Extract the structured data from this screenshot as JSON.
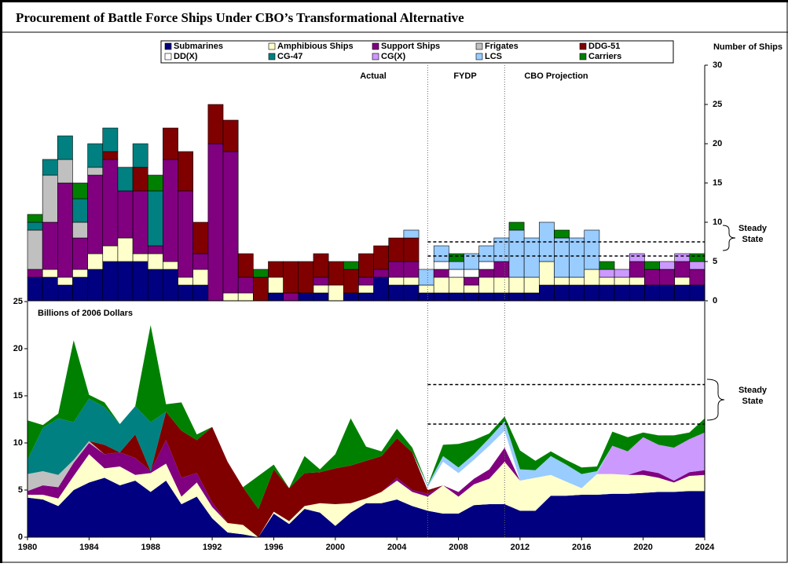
{
  "title": "Procurement of Battle Force Ships Under CBO’s Transformational Alternative",
  "chart_data": [
    {
      "type": "stacked-bar",
      "y_axis_label": "Number of Ships",
      "annotations": [
        "Actual",
        "FYDP",
        "CBO Projection"
      ],
      "side_label": [
        "Steady",
        "State"
      ],
      "steady_state_lines": [
        7.5,
        5.7
      ],
      "ylim": [
        0,
        30
      ],
      "yticks": [
        0,
        5,
        10,
        15,
        20,
        25,
        30
      ],
      "categories": [
        null,
        null,
        null,
        null,
        null,
        null,
        null,
        null,
        null,
        null,
        null,
        null,
        null,
        null,
        null,
        null,
        null,
        null,
        null,
        null,
        null,
        null,
        null,
        null,
        null,
        null,
        null,
        null,
        null,
        null,
        null,
        null,
        null,
        null,
        null,
        null,
        null,
        null,
        null,
        null,
        null,
        null,
        null,
        null,
        null
      ],
      "series": [
        {
          "name": "Submarines",
          "color": "#000080",
          "values": [
            3,
            3,
            2,
            3,
            4,
            5,
            5,
            5,
            4,
            4,
            2,
            2,
            0,
            0,
            0,
            0,
            1,
            0,
            1,
            1,
            0,
            1,
            1,
            3,
            2,
            2,
            1,
            1,
            1,
            1,
            1,
            1,
            1,
            1,
            2,
            2,
            2,
            2,
            2,
            2,
            2,
            2,
            2,
            2,
            2
          ]
        },
        {
          "name": "Amphibious Ships",
          "color": "#ffffcc",
          "values": [
            0,
            1,
            1,
            1,
            2,
            2,
            3,
            1,
            2,
            1,
            1,
            2,
            0,
            1,
            1,
            0,
            2,
            0,
            0,
            1,
            2,
            0,
            1,
            0,
            1,
            1,
            1,
            2,
            2,
            1,
            2,
            2,
            2,
            2,
            3,
            1,
            1,
            2,
            1,
            1,
            1,
            0,
            0,
            1,
            0
          ]
        },
        {
          "name": "Support Ships",
          "color": "#800080",
          "values": [
            1,
            6,
            12,
            4,
            10,
            11,
            6,
            8,
            1,
            13,
            11,
            2,
            20,
            18,
            2,
            0,
            0,
            1,
            0,
            1,
            0,
            0,
            1,
            1,
            2,
            2,
            0,
            1,
            0,
            1,
            1,
            2,
            0,
            0,
            0,
            0,
            0,
            0,
            0,
            0,
            2,
            2,
            2,
            2,
            2
          ]
        },
        {
          "name": "Frigates",
          "color": "#c0c0c0",
          "values": [
            5,
            6,
            3,
            2,
            1,
            0,
            0,
            0,
            0,
            0,
            0,
            0,
            0,
            0,
            0,
            0,
            0,
            0,
            0,
            0,
            0,
            0,
            0,
            0,
            0,
            0,
            0,
            0,
            0,
            0,
            0,
            0,
            0,
            0,
            0,
            0,
            0,
            0,
            0,
            0,
            0,
            0,
            0,
            0,
            0
          ]
        },
        {
          "name": "DDG-51",
          "color": "#800000",
          "values": [
            0,
            0,
            0,
            0,
            0,
            1,
            0,
            3,
            0,
            4,
            5,
            4,
            5,
            4,
            3,
            3,
            2,
            4,
            4,
            3,
            3,
            3,
            3,
            3,
            3,
            3,
            0,
            0,
            0,
            0,
            0,
            0,
            0,
            0,
            0,
            0,
            0,
            0,
            0,
            0,
            0,
            0,
            0,
            0,
            0
          ]
        },
        {
          "name": "DD(X)",
          "color": "#ffffff",
          "values": [
            0,
            0,
            0,
            0,
            0,
            0,
            0,
            0,
            0,
            0,
            0,
            0,
            0,
            0,
            0,
            0,
            0,
            0,
            0,
            0,
            0,
            0,
            0,
            0,
            0,
            0,
            0,
            1,
            1,
            1,
            1,
            0,
            0,
            0,
            0,
            0,
            0,
            0,
            0,
            0,
            0,
            0,
            0,
            0,
            0
          ]
        },
        {
          "name": "CG-47",
          "color": "#008080",
          "values": [
            1,
            2,
            3,
            3,
            3,
            3,
            3,
            3,
            7,
            0,
            0,
            0,
            0,
            0,
            0,
            0,
            0,
            0,
            0,
            0,
            0,
            0,
            0,
            0,
            0,
            0,
            0,
            0,
            0,
            0,
            0,
            0,
            0,
            0,
            0,
            0,
            0,
            0,
            0,
            0,
            0,
            0,
            0,
            0,
            0
          ]
        },
        {
          "name": "CG(X)",
          "color": "#cc99ff",
          "values": [
            0,
            0,
            0,
            0,
            0,
            0,
            0,
            0,
            0,
            0,
            0,
            0,
            0,
            0,
            0,
            0,
            0,
            0,
            0,
            0,
            0,
            0,
            0,
            0,
            0,
            0,
            0,
            0,
            0,
            0,
            0,
            0,
            0,
            0,
            0,
            0,
            0,
            0,
            1,
            1,
            1,
            0,
            1,
            1,
            1
          ]
        },
        {
          "name": "LCS",
          "color": "#99ccff",
          "values": [
            0,
            0,
            0,
            0,
            0,
            0,
            0,
            0,
            0,
            0,
            0,
            0,
            0,
            0,
            0,
            0,
            0,
            0,
            0,
            0,
            0,
            0,
            0,
            0,
            0,
            1,
            2,
            2,
            1,
            2,
            2,
            3,
            6,
            5,
            5,
            5,
            5,
            5,
            0,
            0,
            0,
            0,
            0,
            0,
            0
          ]
        },
        {
          "name": "Carriers",
          "color": "#008000",
          "values": [
            1,
            0,
            0,
            2,
            0,
            0,
            0,
            0,
            2,
            0,
            0,
            0,
            0,
            0,
            0,
            1,
            0,
            0,
            0,
            0,
            0,
            1,
            0,
            0,
            0,
            0,
            0,
            0,
            1,
            0,
            0,
            0,
            1,
            0,
            0,
            1,
            0,
            0,
            1,
            0,
            0,
            1,
            0,
            0,
            1
          ]
        }
      ]
    },
    {
      "type": "stacked-area",
      "y_axis_label": "Billions of 2006 Dollars",
      "side_label": [
        "Steady",
        "State"
      ],
      "steady_state_lines": [
        16.2,
        12
      ],
      "period_lines": [
        2006,
        2011
      ],
      "xlim": [
        1980,
        2024
      ],
      "xticks": [
        1980,
        1984,
        1988,
        1992,
        1996,
        2000,
        2004,
        2008,
        2012,
        2016,
        2020,
        2024
      ],
      "ylim": [
        0,
        25
      ],
      "yticks": [
        0,
        5,
        10,
        15,
        20,
        25
      ],
      "x": [
        1980,
        1981,
        1982,
        1983,
        1984,
        1985,
        1986,
        1987,
        1988,
        1989,
        1990,
        1991,
        1992,
        1993,
        1994,
        1995,
        1996,
        1997,
        1998,
        1999,
        2000,
        2001,
        2002,
        2003,
        2004,
        2005,
        2006,
        2007,
        2008,
        2009,
        2010,
        2011,
        2012,
        2013,
        2014,
        2015,
        2016,
        2017,
        2018,
        2019,
        2020,
        2021,
        2022,
        2023,
        2024
      ],
      "series": [
        {
          "values": [
            4.2,
            4.0,
            3.3,
            5.0,
            5.8,
            6.3,
            5.5,
            6.0,
            4.8,
            6.0,
            3.5,
            4.3,
            2.0,
            0.5,
            0.3,
            0,
            2.5,
            1.4,
            3.0,
            2.6,
            1.2,
            2.6,
            3.6,
            3.6,
            4.0,
            3.3,
            2.8,
            2.5,
            2.5,
            3.4,
            3.5,
            3.5,
            2.8,
            2.8,
            4.4,
            4.4,
            4.5,
            4.5,
            4.6,
            4.6,
            4.7,
            4.8,
            4.8,
            4.9,
            4.9
          ]
        },
        {
          "values": [
            0.3,
            0.5,
            0.8,
            1.5,
            3.0,
            1.0,
            2.0,
            0.6,
            2.0,
            1.8,
            0.8,
            1.5,
            1.2,
            1.0,
            1.0,
            0,
            0.2,
            0.3,
            0.3,
            1.0,
            2.3,
            1.0,
            0.5,
            1.2,
            2.0,
            1.5,
            1.5,
            3.0,
            1.8,
            2.2,
            2.7,
            4.5,
            3.2,
            3.5,
            2.2,
            1.5,
            0.7,
            2.2,
            2.1,
            2.0,
            1.9,
            1.5,
            1.0,
            1.6,
            1.7
          ]
        },
        {
          "values": [
            0.4,
            1.0,
            1.2,
            1.4,
            1.2,
            1.5,
            1.5,
            1.8,
            0.2,
            2.5,
            2.0,
            1.0,
            0.5,
            0,
            0,
            0,
            0,
            0,
            0,
            0,
            0,
            0,
            0,
            0,
            0.3,
            0.2,
            0.3,
            0,
            0.5,
            0.6,
            1.0,
            1.5,
            0,
            0,
            0,
            0,
            0,
            0,
            0,
            0,
            0.5,
            0.5,
            0.2,
            0.4,
            0.5
          ]
        },
        {
          "values": [
            1.8,
            1.5,
            1.3,
            0.3,
            0.2,
            0,
            0,
            0,
            0,
            0,
            0,
            0,
            0,
            0,
            0,
            0,
            0,
            0,
            0,
            0,
            0,
            0,
            0,
            0,
            0,
            0,
            0,
            0,
            0,
            0,
            0,
            0,
            0,
            0,
            0,
            0,
            0,
            0,
            0,
            0,
            0,
            0,
            0,
            0,
            0
          ]
        },
        {
          "values": [
            0,
            0,
            0,
            0,
            0,
            1.0,
            0,
            2.5,
            0,
            3.0,
            5.0,
            3.5,
            8.0,
            6.5,
            4.0,
            3.0,
            4.5,
            3.5,
            3.5,
            3.3,
            3.8,
            4.0,
            4.0,
            3.8,
            4.2,
            4.0,
            0.4,
            0,
            0,
            0,
            0,
            0,
            0,
            0,
            0,
            0,
            0,
            0,
            0,
            0,
            0,
            0,
            0,
            0,
            0
          ]
        },
        {
          "values": [
            0,
            0,
            0,
            0,
            0,
            0,
            0,
            0,
            0,
            0,
            0,
            0,
            0,
            0,
            0,
            0,
            0,
            0,
            0,
            0,
            0,
            0,
            0,
            0,
            0,
            0,
            0.3,
            2.5,
            2.0,
            2.0,
            2.5,
            1.8,
            0,
            0,
            0,
            0,
            0,
            0,
            0,
            0,
            0,
            0,
            0,
            0,
            0
          ]
        },
        {
          "values": [
            1.5,
            4.6,
            6.0,
            4.0,
            4.5,
            4.0,
            3.0,
            3.0,
            5.2,
            0,
            0,
            0,
            0,
            0,
            0,
            0,
            0,
            0,
            0,
            0,
            0,
            0,
            0,
            0,
            0,
            0,
            0,
            0,
            0,
            0,
            0,
            0,
            0,
            0,
            0,
            0,
            0,
            0,
            0,
            0,
            0,
            0,
            0,
            0,
            0
          ]
        },
        {
          "values": [
            0,
            0,
            0,
            0,
            0,
            0,
            0,
            0,
            0,
            0,
            0,
            0,
            0,
            0,
            0,
            0,
            0,
            0,
            0,
            0,
            0,
            0,
            0,
            0,
            0,
            0,
            0,
            0,
            0,
            0,
            0,
            0,
            0,
            0,
            0,
            0,
            0,
            0,
            3.0,
            2.5,
            3.5,
            3.0,
            3.5,
            3.5,
            4.0
          ]
        },
        {
          "values": [
            0,
            0,
            0,
            0,
            0,
            0,
            0,
            0,
            0,
            0,
            0,
            0,
            0,
            0,
            0,
            0,
            0,
            0,
            0,
            0,
            0,
            0,
            0,
            0,
            0,
            0,
            0.2,
            0.6,
            0.6,
            0.6,
            0.8,
            1.0,
            1.2,
            0.8,
            2.0,
            1.8,
            1.5,
            0.3,
            0,
            0,
            0,
            0,
            0,
            0,
            0
          ]
        },
        {
          "values": [
            4.2,
            0.3,
            0.5,
            8.7,
            0.4,
            0.5,
            0,
            0,
            10.3,
            0.8,
            3.0,
            0.6,
            0,
            0,
            0,
            3.5,
            0.5,
            0,
            1.8,
            0.3,
            1.5,
            5.0,
            1.5,
            0.5,
            1.0,
            0.5,
            0,
            1.2,
            2.5,
            1.5,
            0.5,
            0.5,
            2.0,
            1.0,
            0.5,
            0.5,
            0.7,
            0.5,
            1.5,
            1.5,
            0.5,
            1.0,
            1.3,
            0.7,
            1.5
          ]
        }
      ]
    }
  ]
}
